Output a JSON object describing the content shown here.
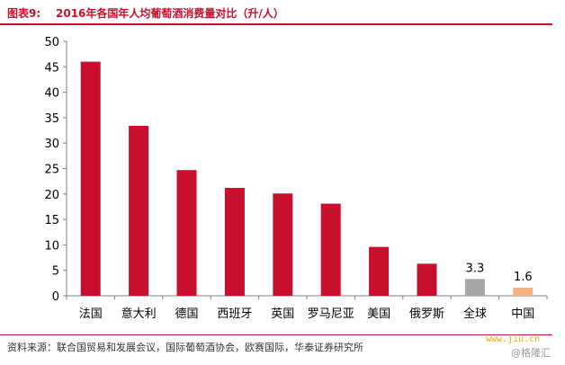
{
  "header": {
    "figure_label": "图表9:",
    "title": "2016年各国年人均葡萄酒消费量对比（升/人）"
  },
  "footer": {
    "source": "资料来源：联合国贸易和发展会议，国际葡萄酒协会，欧赛国际，华泰证券研究所",
    "watermark_url": "www.jiu.cn",
    "watermark_brand": "@格隆汇"
  },
  "chart_data": {
    "type": "bar",
    "title": "2016年各国年人均葡萄酒消费量对比（升/人）",
    "categories": [
      "法国",
      "意大利",
      "德国",
      "西班牙",
      "英国",
      "罗马尼亚",
      "美国",
      "俄罗斯",
      "全球",
      "中国"
    ],
    "values": [
      46.0,
      33.4,
      24.7,
      21.2,
      20.1,
      18.1,
      9.6,
      6.3,
      3.3,
      1.6
    ],
    "data_labels": [
      "",
      "",
      "",
      "",
      "",
      "",
      "",
      "",
      "3.3",
      "1.6"
    ],
    "colors": [
      "#c8102e",
      "#c8102e",
      "#c8102e",
      "#c8102e",
      "#c8102e",
      "#c8102e",
      "#c8102e",
      "#c8102e",
      "#a6a6a6",
      "#f4b183"
    ],
    "y_ticks": [
      "0",
      "5",
      "10",
      "15",
      "20",
      "25",
      "30",
      "35",
      "40",
      "45",
      "50"
    ],
    "ylim": [
      0,
      50
    ],
    "grid": false,
    "legend": "none"
  }
}
